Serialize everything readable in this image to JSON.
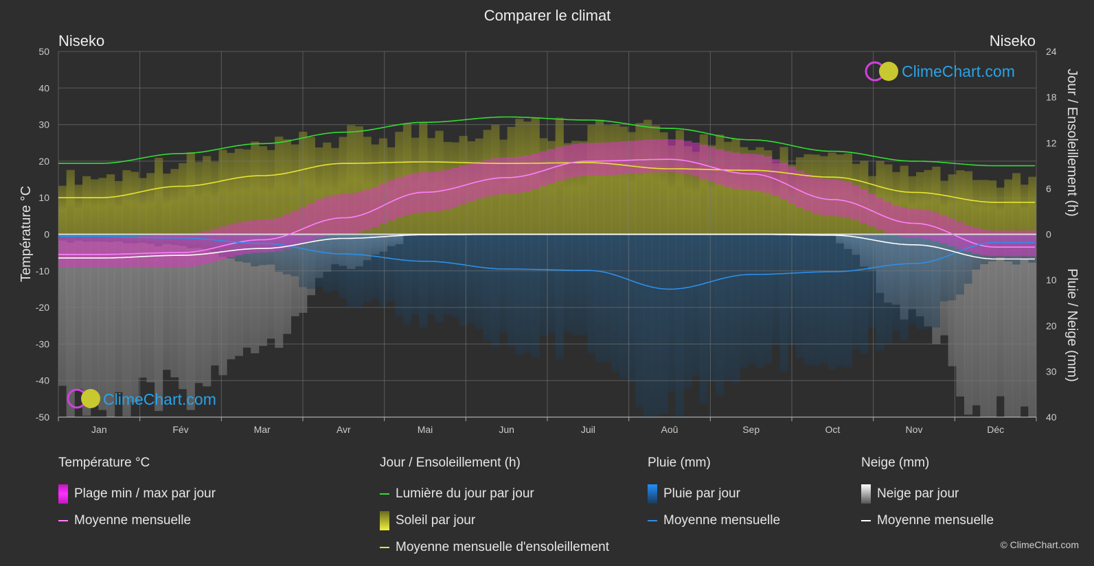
{
  "title": "Comparer le climat",
  "location_left": "Niseko",
  "location_right": "Niseko",
  "y_left_label": "Température °C",
  "y_right_top_label": "Jour / Ensoleillement (h)",
  "y_right_bottom_label": "Pluie / Neige (mm)",
  "brand": "ClimeChart.com",
  "copyright": "© ClimeChart.com",
  "colors": {
    "background": "#2e2e2e",
    "daylight": "#33dd33",
    "sunshine_fill": "#c8c832",
    "sunshine_avg": "#e6e632",
    "temp_range": "#e040c8",
    "temp_avg": "#ff80ff",
    "rain": "#3a8fd8",
    "rain_avg": "#2e8fe8",
    "snow": "#bbbbbb",
    "snow_avg": "#ffffff",
    "brand_text": "#2aa3e8"
  },
  "chart_data": {
    "type": "line",
    "months": [
      "Jan",
      "Fév",
      "Mar",
      "Avr",
      "Mai",
      "Jun",
      "Juil",
      "Aoû",
      "Sep",
      "Oct",
      "Nov",
      "Déc"
    ],
    "y_left_ticks": [
      "50",
      "40",
      "30",
      "20",
      "10",
      "0",
      "-10",
      "-20",
      "-30",
      "-40",
      "-50"
    ],
    "y_right_top_ticks": [
      "24",
      "18",
      "12",
      "6",
      "0"
    ],
    "y_right_bottom_ticks": [
      "10",
      "20",
      "30",
      "40"
    ],
    "y_left_range": [
      -50,
      50
    ],
    "sun_hours_range": [
      0,
      24
    ],
    "precip_mm_range": [
      0,
      40
    ],
    "grid": true,
    "series": [
      {
        "name": "Lumière du jour par jour",
        "unit": "h",
        "values": [
          9.3,
          10.6,
          11.9,
          13.4,
          14.7,
          15.4,
          15.0,
          13.9,
          12.4,
          10.9,
          9.6,
          9.0
        ]
      },
      {
        "name": "Moyenne mensuelle d'ensoleillement",
        "unit": "h",
        "values": [
          4.8,
          6.3,
          7.7,
          9.3,
          9.5,
          9.3,
          9.4,
          8.6,
          8.4,
          7.5,
          5.5,
          4.2
        ]
      },
      {
        "name": "Soleil par jour",
        "unit": "h",
        "values": [
          7.5,
          9.5,
          11.0,
          12.5,
          13.5,
          14.0,
          14.0,
          13.0,
          11.0,
          9.5,
          8.0,
          7.0
        ]
      },
      {
        "name": "Plage min / max par jour",
        "unit": "°C",
        "min": [
          -9,
          -9,
          -5,
          0,
          6,
          11,
          16,
          17,
          12,
          5,
          -1,
          -6
        ],
        "max": [
          -1,
          0,
          4,
          11,
          17,
          21,
          25,
          26,
          22,
          15,
          7,
          1
        ]
      },
      {
        "name": "Température moyenne mensuelle",
        "unit": "°C",
        "values": [
          -5.5,
          -5.0,
          -1.5,
          4.5,
          11.5,
          15.5,
          20.0,
          20.5,
          16.5,
          9.5,
          3.0,
          -3.5
        ]
      },
      {
        "name": "Pluie moyenne mensuelle",
        "unit": "mm",
        "values": [
          0.5,
          0.8,
          2.0,
          4.3,
          5.9,
          7.6,
          7.9,
          12.0,
          8.8,
          8.2,
          6.4,
          1.8
        ]
      },
      {
        "name": "Neige moyenne mensuelle",
        "unit": "mm",
        "values": [
          5.2,
          4.6,
          3.1,
          0.9,
          0.1,
          0.0,
          0.0,
          0.0,
          0.0,
          0.2,
          2.3,
          5.4
        ]
      }
    ]
  },
  "legend": {
    "temp": {
      "title": "Température °C",
      "range_label": "Plage min / max par jour",
      "avg_label": "Moyenne mensuelle"
    },
    "sun": {
      "title": "Jour / Ensoleillement (h)",
      "daylight_label": "Lumière du jour par jour",
      "sunshine_label": "Soleil par jour",
      "avg_label": "Moyenne mensuelle d'ensoleillement"
    },
    "rain": {
      "title": "Pluie (mm)",
      "daily_label": "Pluie par jour",
      "avg_label": "Moyenne mensuelle"
    },
    "snow": {
      "title": "Neige (mm)",
      "daily_label": "Neige par jour",
      "avg_label": "Moyenne mensuelle"
    }
  }
}
